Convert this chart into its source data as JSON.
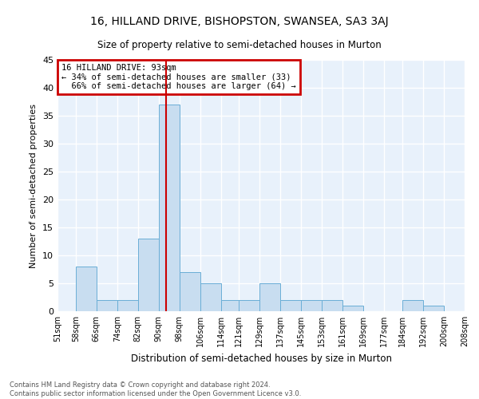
{
  "title": "16, HILLAND DRIVE, BISHOPSTON, SWANSEA, SA3 3AJ",
  "subtitle": "Size of property relative to semi-detached houses in Murton",
  "xlabel": "Distribution of semi-detached houses by size in Murton",
  "ylabel": "Number of semi-detached properties",
  "footer_line1": "Contains HM Land Registry data © Crown copyright and database right 2024.",
  "footer_line2": "Contains public sector information licensed under the Open Government Licence v3.0.",
  "property_label": "16 HILLAND DRIVE: 93sqm",
  "pct_smaller": 34,
  "count_smaller": 33,
  "pct_larger": 66,
  "count_larger": 64,
  "bin_labels": [
    "51sqm",
    "58sqm",
    "66sqm",
    "74sqm",
    "82sqm",
    "90sqm",
    "98sqm",
    "106sqm",
    "114sqm",
    "121sqm",
    "129sqm",
    "137sqm",
    "145sqm",
    "153sqm",
    "161sqm",
    "169sqm",
    "177sqm",
    "184sqm",
    "192sqm",
    "200sqm",
    "208sqm"
  ],
  "bin_edges": [
    51,
    58,
    66,
    74,
    82,
    90,
    98,
    106,
    114,
    121,
    129,
    137,
    145,
    153,
    161,
    169,
    177,
    184,
    192,
    200,
    208
  ],
  "counts": [
    0,
    8,
    2,
    2,
    13,
    37,
    7,
    5,
    2,
    2,
    5,
    2,
    2,
    2,
    1,
    0,
    0,
    2,
    1,
    0
  ],
  "bar_color": "#c8ddf0",
  "bar_edge_color": "#6aaed6",
  "vline_color": "#cc0000",
  "vline_x": 93,
  "annotation_box_color": "#cc0000",
  "bg_color": "#e8f1fb",
  "grid_color": "#ffffff",
  "ylim": [
    0,
    45
  ],
  "yticks": [
    0,
    5,
    10,
    15,
    20,
    25,
    30,
    35,
    40,
    45
  ]
}
